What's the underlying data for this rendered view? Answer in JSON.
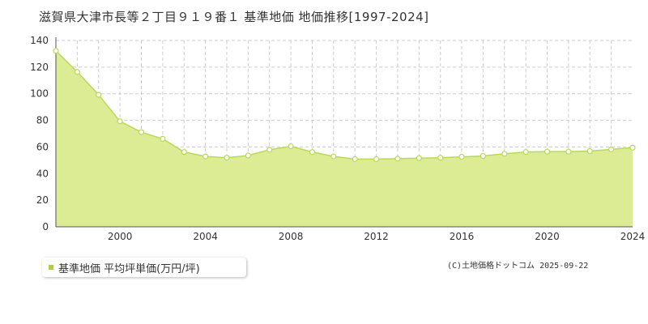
{
  "title": "滋賀県大津市長等２丁目９１９番１ 基準地価 地価推移[1997-2024]",
  "legend_label": "基準地価 平均坪単価(万円/坪)",
  "copyright": "(C)土地価格ドットコム 2025-09-22",
  "colors": {
    "area_fill": "#dcec95",
    "line": "#b7d95a",
    "marker_fill": "#ffffff",
    "legend_marker": "#a8d13a",
    "grid": "#cccccc"
  },
  "chart_data": {
    "type": "area",
    "title": "滋賀県大津市長等２丁目９１９番１ 基準地価 地価推移[1997-2024]",
    "xlabel": "",
    "ylabel": "",
    "xlim": [
      1997,
      2024
    ],
    "ylim": [
      0,
      140
    ],
    "x_ticks": [
      2000,
      2004,
      2008,
      2012,
      2016,
      2020,
      2024
    ],
    "y_ticks": [
      0,
      20,
      40,
      60,
      80,
      100,
      120,
      140
    ],
    "grid": true,
    "legend_position": "bottom-left",
    "series": [
      {
        "name": "基準地価 平均坪単価(万円/坪)",
        "x": [
          1997,
          1998,
          1999,
          2000,
          2001,
          2002,
          2003,
          2004,
          2005,
          2006,
          2007,
          2008,
          2009,
          2010,
          2011,
          2012,
          2013,
          2014,
          2015,
          2016,
          2017,
          2018,
          2019,
          2020,
          2021,
          2022,
          2023,
          2024
        ],
        "values": [
          132.2,
          116.4,
          99.2,
          79.3,
          71.1,
          66.1,
          56.2,
          52.9,
          51.9,
          53.6,
          57.9,
          60.5,
          56.2,
          52.9,
          50.9,
          50.9,
          51.2,
          51.6,
          51.9,
          52.6,
          53.2,
          54.9,
          56.2,
          56.5,
          56.5,
          56.9,
          58.2,
          59.5
        ]
      }
    ]
  }
}
